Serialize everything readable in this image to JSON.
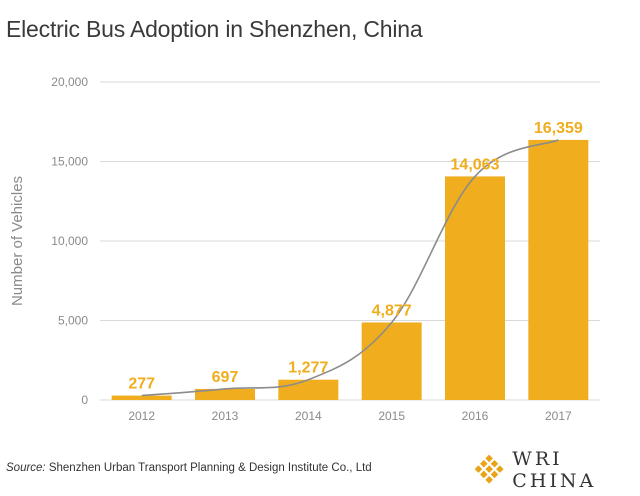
{
  "title": "Electric Bus Adoption in Shenzhen, China",
  "source": {
    "label": "Source:",
    "text": "Shenzhen Urban Transport Planning & Design Institute Co., Ltd"
  },
  "brand": {
    "text": "WRI CHINA",
    "color": "#e8a317"
  },
  "chart_data": {
    "type": "bar",
    "categories": [
      "2012",
      "2013",
      "2014",
      "2015",
      "2016",
      "2017"
    ],
    "values": [
      277,
      697,
      1277,
      4877,
      14063,
      16359
    ],
    "value_labels": [
      "277",
      "697",
      "1,277",
      "4,877",
      "14,063",
      "16,359"
    ],
    "title": "Electric Bus Adoption in Shenzhen, China",
    "xlabel": "",
    "ylabel": "Number of Vehicles",
    "ylim": [
      0,
      20000
    ],
    "yticks": [
      0,
      5000,
      10000,
      15000,
      20000
    ],
    "ytick_labels": [
      "0",
      "5,000",
      "10,000",
      "15,000",
      "20,000"
    ],
    "grid": true,
    "trend_line": true,
    "colors": {
      "bar": "#f0ad1e",
      "label": "#f0ad1e",
      "trend": "#8c8c8c",
      "grid": "#d9d9d9",
      "axis_text": "#8a8a8a"
    }
  }
}
